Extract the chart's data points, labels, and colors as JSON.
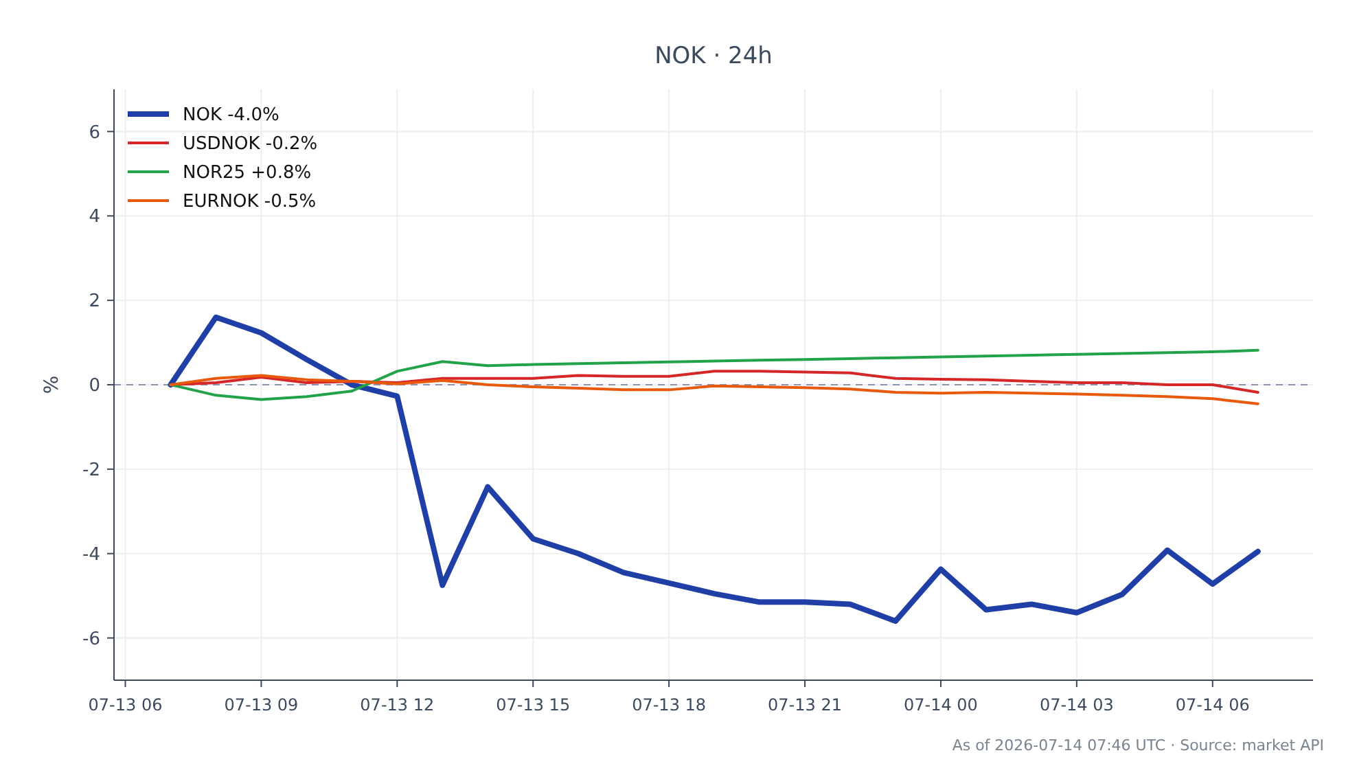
{
  "chart_data": {
    "type": "line",
    "title": "NOK · 24h",
    "ylabel": "%",
    "x": [
      "2026-07-13T07:00",
      "2026-07-13T08:00",
      "2026-07-13T09:00",
      "2026-07-13T10:00",
      "2026-07-13T11:00",
      "2026-07-13T12:00",
      "2026-07-13T13:00",
      "2026-07-13T14:00",
      "2026-07-13T15:00",
      "2026-07-13T16:00",
      "2026-07-13T17:00",
      "2026-07-13T18:00",
      "2026-07-13T19:00",
      "2026-07-13T20:00",
      "2026-07-13T21:00",
      "2026-07-13T22:00",
      "2026-07-13T23:00",
      "2026-07-14T00:00",
      "2026-07-14T01:00",
      "2026-07-14T02:00",
      "2026-07-14T03:00",
      "2026-07-14T04:00",
      "2026-07-14T05:00",
      "2026-07-14T06:00",
      "2026-07-14T07:00"
    ],
    "series": [
      {
        "name": "NOK -4.0%",
        "color": "#1f3fa6",
        "values": [
          0,
          1.6,
          1.23,
          0.6,
          0,
          -0.27,
          -4.75,
          -2.42,
          -3.65,
          -4.0,
          -4.45,
          -4.7,
          -4.95,
          -5.15,
          -5.15,
          -5.2,
          -5.6,
          -4.37,
          -5.33,
          -5.2,
          -5.4,
          -4.97,
          -3.92,
          -4.72,
          -3.95
        ]
      },
      {
        "name": "USDNOK -0.2%",
        "color": "#d62728",
        "values": [
          0,
          0.05,
          0.18,
          0.05,
          0.08,
          0.05,
          0.15,
          0.15,
          0.15,
          0.22,
          0.2,
          0.2,
          0.32,
          0.32,
          0.3,
          0.28,
          0.15,
          0.13,
          0.12,
          0.08,
          0.05,
          0.05,
          0.0,
          0.0,
          -0.18
        ]
      },
      {
        "name": "NOR25 +0.8%",
        "color": "#22a34a",
        "values": [
          0,
          -0.25,
          -0.35,
          -0.28,
          -0.15,
          0.32,
          0.55,
          0.45,
          0.48,
          0.5,
          0.52,
          0.54,
          0.56,
          0.58,
          0.6,
          0.62,
          0.64,
          0.66,
          0.68,
          0.7,
          0.72,
          0.74,
          0.76,
          0.78,
          0.82
        ]
      },
      {
        "name": "EURNOK -0.5%",
        "color": "#e8590c",
        "values": [
          0,
          0.15,
          0.22,
          0.12,
          0.08,
          0.02,
          0.1,
          0.0,
          -0.05,
          -0.08,
          -0.12,
          -0.12,
          -0.03,
          -0.05,
          -0.07,
          -0.1,
          -0.18,
          -0.2,
          -0.18,
          -0.2,
          -0.22,
          -0.25,
          -0.28,
          -0.33,
          -0.45
        ]
      }
    ],
    "xlim": [
      "2026-07-13T05:45",
      "2026-07-14T08:13"
    ],
    "xticks": [
      {
        "value": "2026-07-13T06:00",
        "label": "07-13 06"
      },
      {
        "value": "2026-07-13T09:00",
        "label": "07-13 09"
      },
      {
        "value": "2026-07-13T12:00",
        "label": "07-13 12"
      },
      {
        "value": "2026-07-13T15:00",
        "label": "07-13 15"
      },
      {
        "value": "2026-07-13T18:00",
        "label": "07-13 18"
      },
      {
        "value": "2026-07-13T21:00",
        "label": "07-13 21"
      },
      {
        "value": "2026-07-14T00:00",
        "label": "07-14 00"
      },
      {
        "value": "2026-07-14T03:00",
        "label": "07-14 03"
      },
      {
        "value": "2026-07-14T06:00",
        "label": "07-14 06"
      }
    ],
    "ylim": [
      -7,
      7
    ],
    "yticks": [
      -6,
      -4,
      -2,
      0,
      2,
      4,
      6
    ],
    "ref_lines": [
      {
        "axis": "y",
        "value": 0,
        "color": "#8a94b0",
        "line_style": "dashed"
      }
    ],
    "grid": true,
    "legend": "top left",
    "annotations": [
      "As of 2026-07-14 07:46 UTC · Source: market API"
    ]
  }
}
